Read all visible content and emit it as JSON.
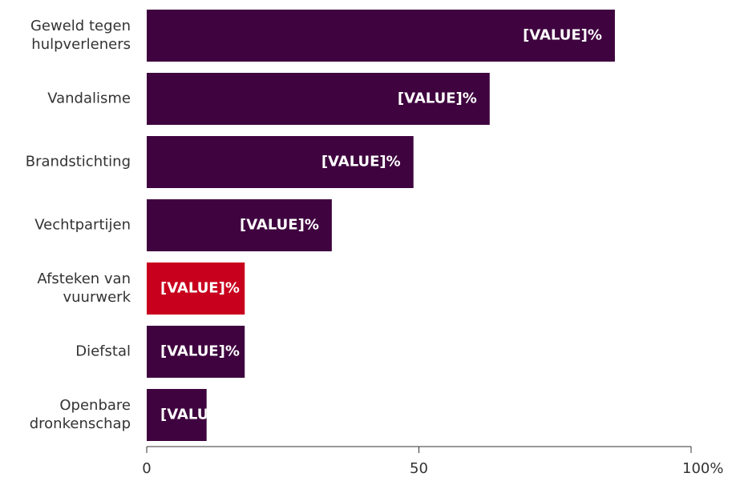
{
  "chart_data": {
    "type": "hbar",
    "categories": [
      "Geweld tegen\nhulpverleners",
      "Vandalisme",
      "Brandstichting",
      "Vechtpartijen",
      "Afsteken van\nvuurwerk",
      "Diefstal",
      "Openbare\ndronkenschap"
    ],
    "values": [
      86,
      63,
      49,
      34,
      18,
      18,
      11
    ],
    "value_labels": [
      "[VALUE]%",
      "[VALUE]%",
      "[VALUE]%",
      "[VALUE]%",
      "[VALUE]%",
      "[VALUE]%",
      "[VALUE]%"
    ],
    "colors": [
      "#3f043f",
      "#3f043f",
      "#3f043f",
      "#3f043f",
      "#c8001e",
      "#3f043f",
      "#3f043f"
    ],
    "xlim": [
      0,
      100
    ],
    "xticks": [
      0,
      50,
      {
        "value": 100,
        "label": "100%"
      }
    ]
  }
}
